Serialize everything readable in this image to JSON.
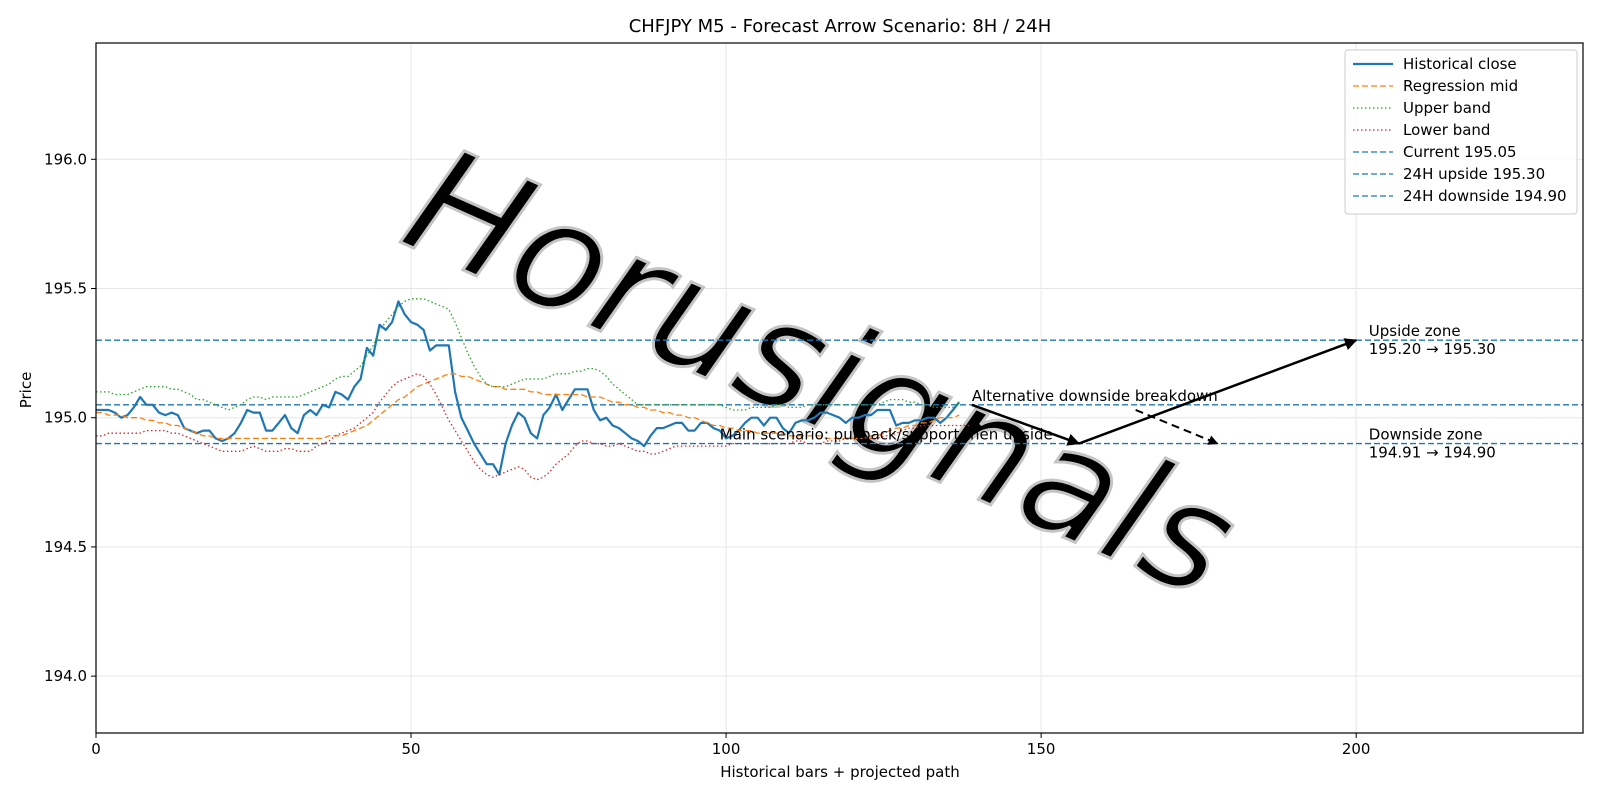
{
  "chart_data": {
    "type": "line",
    "title": "CHFJPY M5 - Forecast Arrow Scenario: 8H / 24H",
    "xlabel": "Historical bars + projected path",
    "ylabel": "Price",
    "xlim": [
      0,
      236
    ],
    "ylim": [
      193.78,
      196.45
    ],
    "xticks": [
      0,
      50,
      100,
      150,
      200
    ],
    "yticks": [
      194.0,
      194.5,
      195.0,
      195.5,
      196.0
    ],
    "xtick_labels": [
      "0",
      "50",
      "100",
      "150",
      "200"
    ],
    "ytick_labels": [
      "194.0",
      "194.5",
      "195.0",
      "195.5",
      "196.0"
    ],
    "grid": true,
    "legend_position": "top-right",
    "watermark": "Horusignals",
    "series": [
      {
        "name": "Historical close",
        "color": "#1f77b4",
        "style": "solid",
        "x_start": 0,
        "values": [
          195.03,
          195.03,
          195.03,
          195.02,
          195.0,
          195.01,
          195.04,
          195.08,
          195.05,
          195.05,
          195.02,
          195.01,
          195.02,
          195.01,
          194.96,
          194.95,
          194.94,
          194.95,
          194.95,
          194.92,
          194.91,
          194.92,
          194.94,
          194.98,
          195.03,
          195.02,
          195.02,
          194.95,
          194.95,
          194.98,
          195.01,
          194.96,
          194.94,
          195.01,
          195.03,
          195.01,
          195.05,
          195.04,
          195.1,
          195.09,
          195.07,
          195.12,
          195.15,
          195.27,
          195.24,
          195.36,
          195.34,
          195.37,
          195.45,
          195.4,
          195.37,
          195.36,
          195.34,
          195.26,
          195.28,
          195.28,
          195.28,
          195.1,
          195.0,
          194.95,
          194.9,
          194.86,
          194.82,
          194.82,
          194.78,
          194.9,
          194.97,
          195.02,
          195.0,
          194.94,
          194.92,
          195.01,
          195.04,
          195.09,
          195.03,
          195.07,
          195.11,
          195.11,
          195.11,
          195.03,
          194.99,
          195.0,
          194.97,
          194.96,
          194.94,
          194.92,
          194.91,
          194.89,
          194.93,
          194.96,
          194.96,
          194.97,
          194.98,
          194.98,
          194.95,
          194.95,
          194.98,
          194.98,
          194.96,
          194.95,
          194.92,
          194.93,
          194.95,
          194.98,
          195.0,
          195.0,
          194.97,
          195.0,
          195.0,
          194.96,
          194.94,
          194.98,
          194.99,
          194.99,
          195.0,
          195.02,
          195.02,
          195.01,
          195.0,
          194.98,
          195.0,
          195.0,
          195.01,
          195.01,
          195.03,
          195.03,
          195.03,
          194.97,
          194.98,
          194.98,
          194.99,
          194.99,
          195.0,
          195.0,
          194.98,
          195.0,
          195.03,
          195.06
        ]
      },
      {
        "name": "Regression mid",
        "color": "#ff7f0e",
        "style": "dashed",
        "x_start": 0,
        "values": [
          195.02,
          195.02,
          195.01,
          195.01,
          195.01,
          195.0,
          195.0,
          195.0,
          194.99,
          194.99,
          194.98,
          194.98,
          194.97,
          194.97,
          194.96,
          194.95,
          194.94,
          194.93,
          194.93,
          194.92,
          194.92,
          194.92,
          194.92,
          194.92,
          194.92,
          194.92,
          194.92,
          194.92,
          194.92,
          194.92,
          194.92,
          194.92,
          194.92,
          194.92,
          194.92,
          194.92,
          194.92,
          194.93,
          194.93,
          194.93,
          194.94,
          194.95,
          194.96,
          194.97,
          194.99,
          195.01,
          195.03,
          195.05,
          195.07,
          195.08,
          195.1,
          195.12,
          195.13,
          195.14,
          195.15,
          195.16,
          195.17,
          195.17,
          195.16,
          195.16,
          195.15,
          195.14,
          195.13,
          195.12,
          195.12,
          195.11,
          195.11,
          195.11,
          195.11,
          195.1,
          195.1,
          195.09,
          195.09,
          195.09,
          195.09,
          195.09,
          195.09,
          195.09,
          195.08,
          195.08,
          195.08,
          195.07,
          195.06,
          195.06,
          195.05,
          195.05,
          195.04,
          195.04,
          195.03,
          195.03,
          195.02,
          195.02,
          195.01,
          195.01,
          195.0,
          195.0,
          194.99,
          194.98,
          194.97,
          194.97,
          194.96,
          194.96,
          194.95,
          194.95,
          194.95,
          194.94,
          194.94,
          194.94,
          194.94,
          194.94,
          194.93,
          194.93,
          194.93,
          194.93,
          194.93,
          194.93,
          194.92,
          194.92,
          194.92,
          194.92,
          194.92,
          194.92,
          194.92,
          194.93,
          194.93,
          194.94,
          194.95,
          194.96,
          194.96,
          194.97,
          194.97,
          194.98,
          194.98,
          194.99,
          195.0,
          195.0,
          195.0,
          195.01
        ]
      },
      {
        "name": "Upper band",
        "color": "#2ca02c",
        "style": "dotted",
        "x_start": 0,
        "values": [
          195.1,
          195.1,
          195.1,
          195.09,
          195.09,
          195.09,
          195.1,
          195.11,
          195.12,
          195.12,
          195.12,
          195.12,
          195.11,
          195.11,
          195.1,
          195.09,
          195.07,
          195.07,
          195.06,
          195.05,
          195.04,
          195.03,
          195.04,
          195.05,
          195.07,
          195.08,
          195.08,
          195.07,
          195.08,
          195.08,
          195.08,
          195.08,
          195.08,
          195.09,
          195.1,
          195.11,
          195.12,
          195.13,
          195.15,
          195.16,
          195.16,
          195.18,
          195.2,
          195.24,
          195.28,
          195.34,
          195.37,
          195.4,
          195.43,
          195.45,
          195.46,
          195.46,
          195.46,
          195.45,
          195.44,
          195.43,
          195.42,
          195.37,
          195.31,
          195.25,
          195.2,
          195.16,
          195.13,
          195.12,
          195.12,
          195.12,
          195.13,
          195.14,
          195.15,
          195.15,
          195.15,
          195.15,
          195.16,
          195.17,
          195.17,
          195.17,
          195.18,
          195.18,
          195.19,
          195.19,
          195.18,
          195.16,
          195.13,
          195.11,
          195.09,
          195.07,
          195.05,
          195.05,
          195.05,
          195.05,
          195.05,
          195.05,
          195.05,
          195.05,
          195.05,
          195.05,
          195.05,
          195.05,
          195.05,
          195.05,
          195.04,
          195.03,
          195.03,
          195.03,
          195.04,
          195.04,
          195.04,
          195.04,
          195.05,
          195.05,
          195.04,
          195.04,
          195.04,
          195.05,
          195.05,
          195.05,
          195.05,
          195.05,
          195.05,
          195.05,
          195.05,
          195.05,
          195.05,
          195.05,
          195.05,
          195.06,
          195.07,
          195.07,
          195.07,
          195.06,
          195.06,
          195.05,
          195.05,
          195.04,
          195.04,
          195.04,
          195.04,
          195.06
        ]
      },
      {
        "name": "Lower band",
        "color": "#d62728",
        "style": "dotted",
        "x_start": 0,
        "values": [
          194.93,
          194.93,
          194.94,
          194.94,
          194.94,
          194.94,
          194.94,
          194.94,
          194.95,
          194.95,
          194.95,
          194.95,
          194.94,
          194.94,
          194.93,
          194.92,
          194.91,
          194.9,
          194.89,
          194.88,
          194.87,
          194.87,
          194.87,
          194.87,
          194.88,
          194.89,
          194.88,
          194.87,
          194.87,
          194.87,
          194.88,
          194.88,
          194.87,
          194.87,
          194.87,
          194.89,
          194.9,
          194.91,
          194.93,
          194.94,
          194.95,
          194.96,
          194.98,
          195.0,
          195.02,
          195.06,
          195.09,
          195.12,
          195.14,
          195.15,
          195.16,
          195.17,
          195.16,
          195.13,
          195.09,
          195.04,
          194.99,
          194.95,
          194.91,
          194.87,
          194.83,
          194.8,
          194.78,
          194.77,
          194.78,
          194.79,
          194.8,
          194.81,
          194.8,
          194.77,
          194.76,
          194.77,
          194.79,
          194.82,
          194.84,
          194.86,
          194.89,
          194.91,
          194.91,
          194.9,
          194.9,
          194.89,
          194.89,
          194.9,
          194.89,
          194.88,
          194.87,
          194.87,
          194.86,
          194.86,
          194.87,
          194.88,
          194.89,
          194.89,
          194.89,
          194.89,
          194.89,
          194.89,
          194.89,
          194.89,
          194.89,
          194.9,
          194.9,
          194.9,
          194.9,
          194.9,
          194.9,
          194.9,
          194.9,
          194.9,
          194.9,
          194.91,
          194.91,
          194.9,
          194.9,
          194.9,
          194.91,
          194.91,
          194.91,
          194.92,
          194.92,
          194.92,
          194.92,
          194.92,
          194.92,
          194.93,
          194.93,
          194.94,
          194.95,
          194.96,
          194.96,
          194.97,
          194.97,
          194.97,
          194.97,
          194.97,
          194.97,
          194.97,
          194.97,
          194.97
        ]
      }
    ],
    "hlines": [
      {
        "name": "Current 195.05",
        "y": 195.05,
        "color": "#1f77b4",
        "style": "dashed"
      },
      {
        "name": "24H upside 195.30",
        "y": 195.3,
        "color": "#1f77b4",
        "style": "dashed"
      },
      {
        "name": "24H downside 194.90",
        "y": 194.9,
        "color": "#1f77b4",
        "style": "dashed"
      }
    ],
    "arrows": [
      {
        "name": "main-leg-1",
        "from": [
          139,
          195.05
        ],
        "to": [
          156,
          194.9
        ],
        "style": "solid"
      },
      {
        "name": "main-leg-2",
        "from": [
          156,
          194.9
        ],
        "to": [
          200,
          195.3
        ],
        "style": "solid"
      },
      {
        "name": "alternative",
        "from": [
          165,
          195.03
        ],
        "to": [
          178,
          194.9
        ],
        "style": "dashed"
      }
    ],
    "annotations": [
      {
        "name": "alternative-label",
        "text": "Alternative downside breakdown",
        "x": 139,
        "y": 195.05
      },
      {
        "name": "main-scenario-label",
        "text": "Main scenario: pullback/support then upside",
        "x": 99,
        "y": 194.9
      },
      {
        "name": "upside-zone-title",
        "text": "Upside zone",
        "x": 202,
        "y": 195.3
      },
      {
        "name": "upside-zone-range",
        "text": "195.20 → 195.30",
        "x": 202,
        "y": 195.3
      },
      {
        "name": "downside-zone-title",
        "text": "Downside zone",
        "x": 202,
        "y": 194.9
      },
      {
        "name": "downside-zone-range",
        "text": "194.91 → 194.90",
        "x": 202,
        "y": 194.9
      }
    ]
  }
}
